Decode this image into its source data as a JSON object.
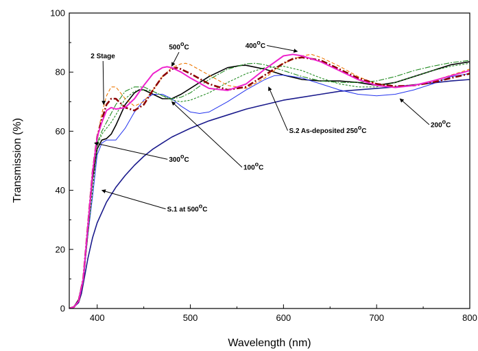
{
  "chart_data": {
    "type": "line",
    "title": "",
    "xlabel": "Wavelength (nm)",
    "ylabel": "Transmission (%)",
    "xlim": [
      370,
      800
    ],
    "ylim": [
      0,
      100
    ],
    "xticks": [
      400,
      500,
      600,
      700,
      800
    ],
    "yticks": [
      0,
      20,
      40,
      60,
      80,
      100
    ],
    "grid": false,
    "series": [
      {
        "color": "#1a1a8c",
        "dash": "",
        "width": 1.6,
        "points": [
          [
            370,
            0
          ],
          [
            375,
            0.5
          ],
          [
            380,
            2
          ],
          [
            383,
            5
          ],
          [
            386,
            10
          ],
          [
            390,
            17
          ],
          [
            395,
            24
          ],
          [
            400,
            29
          ],
          [
            410,
            36
          ],
          [
            420,
            41
          ],
          [
            430,
            45
          ],
          [
            440,
            48.5
          ],
          [
            450,
            51.5
          ],
          [
            460,
            54
          ],
          [
            470,
            56
          ],
          [
            480,
            58
          ],
          [
            500,
            61
          ],
          [
            520,
            63.5
          ],
          [
            540,
            65.5
          ],
          [
            560,
            67.5
          ],
          [
            580,
            69
          ],
          [
            600,
            70.5
          ],
          [
            620,
            71.5
          ],
          [
            640,
            72.5
          ],
          [
            660,
            73.5
          ],
          [
            680,
            74
          ],
          [
            700,
            74.5
          ],
          [
            720,
            75
          ],
          [
            740,
            75.7
          ],
          [
            760,
            76.3
          ],
          [
            780,
            77
          ],
          [
            800,
            77.5
          ]
        ]
      },
      {
        "color": "#000000",
        "dash": "",
        "width": 1.6,
        "points": [
          [
            370,
            0
          ],
          [
            375,
            0.6
          ],
          [
            380,
            3
          ],
          [
            385,
            10
          ],
          [
            390,
            28
          ],
          [
            395,
            44
          ],
          [
            400,
            54
          ],
          [
            405,
            57
          ],
          [
            410,
            57.5
          ],
          [
            415,
            59
          ],
          [
            420,
            62
          ],
          [
            430,
            69
          ],
          [
            440,
            73
          ],
          [
            445,
            74
          ],
          [
            450,
            74
          ],
          [
            460,
            72.5
          ],
          [
            470,
            71
          ],
          [
            480,
            71
          ],
          [
            490,
            72.5
          ],
          [
            500,
            74.5
          ],
          [
            520,
            78.5
          ],
          [
            540,
            81.5
          ],
          [
            555,
            82.3
          ],
          [
            560,
            82.3
          ],
          [
            580,
            81
          ],
          [
            600,
            79
          ],
          [
            620,
            77.5
          ],
          [
            640,
            77
          ],
          [
            660,
            77
          ],
          [
            680,
            76.5
          ],
          [
            700,
            75.5
          ],
          [
            720,
            76.5
          ],
          [
            740,
            78.5
          ],
          [
            760,
            80.5
          ],
          [
            780,
            82.5
          ],
          [
            800,
            83.5
          ]
        ]
      },
      {
        "color": "#2233ee",
        "dash": "",
        "width": 1,
        "points": [
          [
            370,
            0
          ],
          [
            375,
            0.5
          ],
          [
            380,
            2.5
          ],
          [
            385,
            9
          ],
          [
            390,
            25
          ],
          [
            395,
            38
          ],
          [
            400,
            52
          ],
          [
            405,
            56
          ],
          [
            410,
            57
          ],
          [
            420,
            57
          ],
          [
            430,
            61
          ],
          [
            440,
            66.5
          ],
          [
            450,
            70.5
          ],
          [
            460,
            72.5
          ],
          [
            470,
            72.5
          ],
          [
            480,
            71
          ],
          [
            490,
            68.5
          ],
          [
            500,
            66.5
          ],
          [
            510,
            66
          ],
          [
            520,
            66.5
          ],
          [
            540,
            70
          ],
          [
            560,
            74
          ],
          [
            580,
            77.5
          ],
          [
            590,
            78.8
          ],
          [
            600,
            79
          ],
          [
            620,
            78
          ],
          [
            640,
            76
          ],
          [
            660,
            74
          ],
          [
            680,
            72.5
          ],
          [
            700,
            72
          ],
          [
            720,
            72.5
          ],
          [
            740,
            74
          ],
          [
            760,
            76
          ],
          [
            780,
            78.5
          ],
          [
            800,
            79.5
          ]
        ]
      },
      {
        "color": "#228b22",
        "dash": "3,2",
        "width": 1.1,
        "points": [
          [
            370,
            0
          ],
          [
            375,
            0.5
          ],
          [
            380,
            2.5
          ],
          [
            385,
            9
          ],
          [
            390,
            25
          ],
          [
            395,
            40
          ],
          [
            400,
            55
          ],
          [
            405,
            59
          ],
          [
            410,
            61
          ],
          [
            415,
            63
          ],
          [
            420,
            65.5
          ],
          [
            430,
            71
          ],
          [
            440,
            73.5
          ],
          [
            450,
            74
          ],
          [
            460,
            73.5
          ],
          [
            470,
            72
          ],
          [
            480,
            70.5
          ],
          [
            490,
            70
          ],
          [
            500,
            70.5
          ],
          [
            520,
            73
          ],
          [
            540,
            76.5
          ],
          [
            560,
            79.5
          ],
          [
            580,
            81.5
          ],
          [
            600,
            82
          ],
          [
            620,
            80.5
          ],
          [
            640,
            78
          ],
          [
            660,
            76
          ],
          [
            680,
            75
          ],
          [
            700,
            75
          ],
          [
            720,
            76.5
          ],
          [
            740,
            78.5
          ],
          [
            760,
            80.5
          ],
          [
            780,
            82
          ],
          [
            800,
            83
          ]
        ]
      },
      {
        "color": "#228b22",
        "dash": "8,2,2,2",
        "width": 1.1,
        "points": [
          [
            370,
            0
          ],
          [
            375,
            0.5
          ],
          [
            380,
            2.5
          ],
          [
            385,
            10
          ],
          [
            390,
            28
          ],
          [
            395,
            45
          ],
          [
            400,
            56
          ],
          [
            405,
            60
          ],
          [
            410,
            63
          ],
          [
            415,
            66
          ],
          [
            420,
            69
          ],
          [
            430,
            73.5
          ],
          [
            440,
            75
          ],
          [
            450,
            75
          ],
          [
            460,
            73.5
          ],
          [
            470,
            72
          ],
          [
            480,
            71
          ],
          [
            490,
            71.5
          ],
          [
            500,
            73
          ],
          [
            520,
            77.5
          ],
          [
            540,
            81
          ],
          [
            560,
            82.8
          ],
          [
            570,
            83
          ],
          [
            580,
            82.5
          ],
          [
            600,
            80.5
          ],
          [
            620,
            78.5
          ],
          [
            640,
            77
          ],
          [
            660,
            76.5
          ],
          [
            680,
            76.5
          ],
          [
            700,
            77
          ],
          [
            720,
            78.5
          ],
          [
            740,
            80.5
          ],
          [
            760,
            82
          ],
          [
            780,
            83.2
          ],
          [
            800,
            84
          ]
        ]
      },
      {
        "color": "#ee7700",
        "dash": "5,3",
        "width": 1.1,
        "points": [
          [
            370,
            0
          ],
          [
            375,
            0.5
          ],
          [
            380,
            2.5
          ],
          [
            385,
            10
          ],
          [
            390,
            28
          ],
          [
            395,
            46
          ],
          [
            400,
            58
          ],
          [
            405,
            66
          ],
          [
            410,
            72
          ],
          [
            415,
            75
          ],
          [
            420,
            75
          ],
          [
            430,
            71
          ],
          [
            440,
            68.5
          ],
          [
            450,
            70
          ],
          [
            460,
            74
          ],
          [
            470,
            78.5
          ],
          [
            480,
            81.5
          ],
          [
            490,
            82.8
          ],
          [
            495,
            83
          ],
          [
            500,
            82.5
          ],
          [
            520,
            79
          ],
          [
            540,
            75.5
          ],
          [
            560,
            74.5
          ],
          [
            580,
            78
          ],
          [
            600,
            83
          ],
          [
            620,
            85.5
          ],
          [
            630,
            86
          ],
          [
            640,
            85
          ],
          [
            660,
            82
          ],
          [
            680,
            78.5
          ],
          [
            700,
            76
          ],
          [
            720,
            75
          ],
          [
            740,
            75.5
          ],
          [
            760,
            77
          ],
          [
            780,
            79
          ],
          [
            800,
            81
          ]
        ]
      },
      {
        "color": "#8b0000",
        "dash": "9,3,2,3",
        "width": 2.6,
        "points": [
          [
            370,
            0
          ],
          [
            375,
            0.5
          ],
          [
            380,
            2.5
          ],
          [
            385,
            10
          ],
          [
            390,
            28
          ],
          [
            395,
            46
          ],
          [
            400,
            58
          ],
          [
            405,
            64
          ],
          [
            410,
            69
          ],
          [
            415,
            71
          ],
          [
            420,
            71
          ],
          [
            430,
            68
          ],
          [
            440,
            67
          ],
          [
            450,
            69
          ],
          [
            460,
            74
          ],
          [
            470,
            78.5
          ],
          [
            480,
            81
          ],
          [
            485,
            81.5
          ],
          [
            490,
            81
          ],
          [
            500,
            79.5
          ],
          [
            520,
            76
          ],
          [
            540,
            74
          ],
          [
            560,
            75
          ],
          [
            580,
            79
          ],
          [
            600,
            83
          ],
          [
            610,
            84.5
          ],
          [
            620,
            85
          ],
          [
            640,
            84
          ],
          [
            660,
            81
          ],
          [
            680,
            78
          ],
          [
            700,
            76
          ],
          [
            720,
            75.2
          ],
          [
            740,
            75.5
          ],
          [
            760,
            76.5
          ],
          [
            780,
            78
          ],
          [
            800,
            79.5
          ]
        ]
      },
      {
        "color": "#ee22cc",
        "dash": "",
        "width": 2,
        "points": [
          [
            370,
            0
          ],
          [
            375,
            0.5
          ],
          [
            380,
            2.5
          ],
          [
            385,
            10
          ],
          [
            390,
            28
          ],
          [
            395,
            46
          ],
          [
            400,
            58
          ],
          [
            405,
            63
          ],
          [
            410,
            67
          ],
          [
            415,
            68
          ],
          [
            420,
            67.5
          ],
          [
            430,
            68
          ],
          [
            440,
            71
          ],
          [
            450,
            75.5
          ],
          [
            460,
            79.5
          ],
          [
            470,
            81.5
          ],
          [
            475,
            81.8
          ],
          [
            480,
            81.5
          ],
          [
            490,
            80
          ],
          [
            500,
            78
          ],
          [
            520,
            74.5
          ],
          [
            540,
            73.8
          ],
          [
            560,
            76
          ],
          [
            580,
            81
          ],
          [
            600,
            85.5
          ],
          [
            610,
            86
          ],
          [
            620,
            85.5
          ],
          [
            640,
            83.5
          ],
          [
            660,
            80.5
          ],
          [
            680,
            77.5
          ],
          [
            700,
            75.5
          ],
          [
            720,
            74.8
          ],
          [
            740,
            75.5
          ],
          [
            760,
            77
          ],
          [
            780,
            78.8
          ],
          [
            800,
            80.5
          ]
        ]
      }
    ],
    "annotations": [
      {
        "text": "2 Stage",
        "tx": 393,
        "ty": 85.5,
        "ax": 407,
        "ay": 69
      },
      {
        "text": "500",
        "sup": "o",
        "after": "C",
        "tx": 477,
        "ty": 88.5,
        "ax": 480,
        "ay": 82
      },
      {
        "text": "400",
        "sup": "o",
        "after": "C",
        "tx": 559,
        "ty": 89,
        "ax": 615,
        "ay": 87
      },
      {
        "text": "S.2 As-deposited 250",
        "sup": "o",
        "after": "C",
        "tx": 606,
        "ty": 60.2,
        "ax": 584,
        "ay": 75
      },
      {
        "text": "200",
        "sup": "o",
        "after": "C",
        "tx": 758,
        "ty": 62.2,
        "ax": 725,
        "ay": 71
      },
      {
        "text": "100",
        "sup": "o",
        "after": "C",
        "tx": 557,
        "ty": 47.8,
        "ax": 480,
        "ay": 70
      },
      {
        "text": "300",
        "sup": "o",
        "after": "C",
        "tx": 477,
        "ty": 50.5,
        "ax": 397,
        "ay": 56
      },
      {
        "text": "S.1 at 500",
        "sup": "o",
        "after": "C",
        "tx": 475,
        "ty": 33.7,
        "ax": 405,
        "ay": 40
      }
    ]
  }
}
